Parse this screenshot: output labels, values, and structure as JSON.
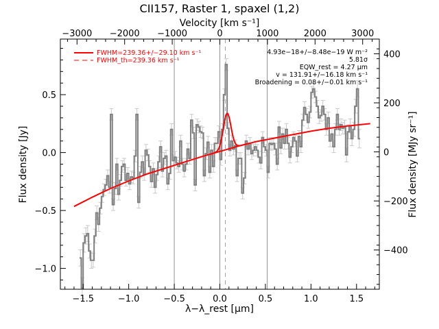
{
  "chart_data": {
    "type": "line",
    "title": "CII157, Raster 1, spaxel (1,2)",
    "xlabel": "λ−λ_rest [μm]",
    "ylabel": "Flux density [Jy]",
    "top_axis_label": "Velocity [km s⁻¹]",
    "right_axis_label": "Flux density [MJy sr⁻¹]",
    "xlim": [
      -1.75,
      1.75
    ],
    "ylim": [
      -1.18,
      0.98
    ],
    "top_xlim": [
      -3350,
      3350
    ],
    "right_ylim": [
      -560,
      460
    ],
    "x_ticks": [
      -1.5,
      -1.0,
      -0.5,
      0.0,
      0.5,
      1.0,
      1.5
    ],
    "x_tick_labels": [
      "−1.5",
      "−1.0",
      "−0.5",
      "0.0",
      "0.5",
      "1.0",
      "1.5"
    ],
    "y_ticks": [
      -1.0,
      -0.5,
      0.0,
      0.5
    ],
    "y_tick_labels": [
      "−1.0",
      "−0.5",
      "0.0",
      "0.5"
    ],
    "top_ticks": [
      -3000,
      -2000,
      -1000,
      0,
      1000,
      2000,
      3000
    ],
    "top_tick_labels": [
      "−3000",
      "−2000",
      "−1000",
      "0",
      "1000",
      "2000",
      "3000"
    ],
    "right_ticks": [
      -400,
      -200,
      0,
      200,
      400
    ],
    "right_tick_labels": [
      "−400",
      "−200",
      "0",
      "200",
      "400"
    ],
    "vertical_lines": [
      -0.5,
      0.0,
      0.52
    ],
    "rest_line": 0.06,
    "legend": [
      {
        "label": "FWHM=239.36+/−29.10 km s⁻¹",
        "style": "solid",
        "color": "#ff0000"
      },
      {
        "label": "FWHM_th=239.36 km s⁻¹",
        "style": "dashed",
        "color": "#ff0000"
      }
    ],
    "annotations": [
      "4.93e−18+/−8.48e−19 W m⁻²",
      "5.81σ",
      "EQW_rest = 4.27 μm",
      "v = 131.91+/−16.18 km s⁻¹",
      "Broadening = 0.08+/−0.01 km s⁻¹"
    ],
    "spectrum": {
      "color": "#808080",
      "points": [
        [
          -1.53,
          -0.91
        ],
        [
          -1.51,
          -1.17
        ],
        [
          -1.49,
          -0.78
        ],
        [
          -1.47,
          -0.72
        ],
        [
          -1.45,
          -0.7
        ],
        [
          -1.43,
          -0.85
        ],
        [
          -1.41,
          -0.93
        ],
        [
          -1.39,
          -0.93
        ],
        [
          -1.37,
          -0.72
        ],
        [
          -1.35,
          -0.52
        ],
        [
          -1.33,
          -0.62
        ],
        [
          -1.31,
          -0.48
        ],
        [
          -1.29,
          -0.38
        ],
        [
          -1.27,
          -0.32
        ],
        [
          -1.25,
          -0.28
        ],
        [
          -1.23,
          -0.2
        ],
        [
          -1.21,
          -0.3
        ],
        [
          -1.19,
          0.33
        ],
        [
          -1.17,
          -0.45
        ],
        [
          -1.15,
          -0.31
        ],
        [
          -1.13,
          -0.1
        ],
        [
          -1.11,
          -0.36
        ],
        [
          -1.09,
          -0.24
        ],
        [
          -1.07,
          -0.12
        ],
        [
          -1.05,
          -0.1
        ],
        [
          -1.03,
          -0.24
        ],
        [
          -1.01,
          -0.18
        ],
        [
          -0.99,
          -0.27
        ],
        [
          -0.97,
          -0.21
        ],
        [
          -0.95,
          -0.22
        ],
        [
          -0.93,
          -0.03
        ],
        [
          -0.91,
          0.33
        ],
        [
          -0.89,
          -0.43
        ],
        [
          -0.87,
          -0.17
        ],
        [
          -0.85,
          -0.08
        ],
        [
          -0.83,
          -0.19
        ],
        [
          -0.81,
          0.02
        ],
        [
          -0.79,
          -0.02
        ],
        [
          -0.77,
          -0.12
        ],
        [
          -0.75,
          -0.25
        ],
        [
          -0.73,
          -0.14
        ],
        [
          -0.71,
          -0.3
        ],
        [
          -0.69,
          -0.19
        ],
        [
          -0.67,
          -0.08
        ],
        [
          -0.65,
          0.05
        ],
        [
          -0.63,
          -0.16
        ],
        [
          -0.61,
          -0.05
        ],
        [
          -0.59,
          -0.03
        ],
        [
          -0.57,
          -0.27
        ],
        [
          -0.55,
          -0.18
        ],
        [
          -0.53,
          0.2
        ],
        [
          -0.51,
          -0.07
        ],
        [
          -0.49,
          -0.04
        ],
        [
          -0.47,
          -0.09
        ],
        [
          -0.45,
          -0.12
        ],
        [
          -0.43,
          0.1
        ],
        [
          -0.41,
          -0.1
        ],
        [
          -0.39,
          -0.16
        ],
        [
          -0.37,
          -0.1
        ],
        [
          -0.35,
          0.03
        ],
        [
          -0.33,
          -0.05
        ],
        [
          -0.31,
          0.28
        ],
        [
          -0.29,
          0.17
        ],
        [
          -0.27,
          -0.28
        ],
        [
          -0.25,
          0.24
        ],
        [
          -0.23,
          0.22
        ],
        [
          -0.21,
          0.18
        ],
        [
          -0.19,
          0.17
        ],
        [
          -0.17,
          -0.2
        ],
        [
          -0.15,
          -0.01
        ],
        [
          -0.13,
          0.09
        ],
        [
          -0.11,
          -0.17
        ],
        [
          -0.09,
          0.02
        ],
        [
          -0.07,
          -0.12
        ],
        [
          -0.05,
          0.08
        ],
        [
          -0.03,
          0.08
        ],
        [
          -0.01,
          0.18
        ],
        [
          0.01,
          -0.06
        ],
        [
          0.03,
          0.2
        ],
        [
          0.05,
          0.5
        ],
        [
          0.07,
          0.76
        ],
        [
          0.09,
          0.21
        ],
        [
          0.11,
          0.02
        ],
        [
          0.13,
          0.1
        ],
        [
          0.15,
          0.03
        ],
        [
          0.17,
          0.06
        ],
        [
          0.19,
          -0.2
        ],
        [
          0.21,
          -0.05
        ],
        [
          0.23,
          -0.05
        ],
        [
          0.25,
          -0.35
        ],
        [
          0.27,
          -0.22
        ],
        [
          0.29,
          0.1
        ],
        [
          0.31,
          0.03
        ],
        [
          0.33,
          0.08
        ],
        [
          0.35,
          -0.01
        ],
        [
          0.37,
          0.02
        ],
        [
          0.39,
          0.05
        ],
        [
          0.41,
          0.02
        ],
        [
          0.43,
          -0.04
        ],
        [
          0.45,
          -0.09
        ],
        [
          0.47,
          0.13
        ],
        [
          0.49,
          0.05
        ],
        [
          0.51,
          0.02
        ],
        [
          0.53,
          -0.17
        ],
        [
          0.55,
          0.08
        ],
        [
          0.57,
          0.07
        ],
        [
          0.59,
          0.08
        ],
        [
          0.61,
          0.03
        ],
        [
          0.63,
          -0.1
        ],
        [
          0.65,
          0.22
        ],
        [
          0.67,
          0.04
        ],
        [
          0.69,
          0.16
        ],
        [
          0.71,
          0.08
        ],
        [
          0.73,
          0.2
        ],
        [
          0.75,
          0.08
        ],
        [
          0.77,
          -0.04
        ],
        [
          0.79,
          0.05
        ],
        [
          0.81,
          0.13
        ],
        [
          0.83,
          0.1
        ],
        [
          0.85,
          -0.03
        ],
        [
          0.87,
          0.14
        ],
        [
          0.89,
          0.05
        ],
        [
          0.91,
          0.28
        ],
        [
          0.93,
          0.39
        ],
        [
          0.95,
          0.33
        ],
        [
          0.97,
          0.26
        ],
        [
          0.99,
          0.35
        ],
        [
          1.01,
          0.52
        ],
        [
          1.03,
          0.55
        ],
        [
          1.05,
          0.48
        ],
        [
          1.07,
          0.4
        ],
        [
          1.09,
          0.3
        ],
        [
          1.11,
          0.32
        ],
        [
          1.13,
          0.4
        ],
        [
          1.15,
          0.33
        ],
        [
          1.17,
          0.2
        ],
        [
          1.19,
          0.3
        ],
        [
          1.21,
          0.1
        ],
        [
          1.23,
          0.16
        ],
        [
          1.25,
          0.05
        ],
        [
          1.27,
          0.2
        ],
        [
          1.29,
          0.33
        ],
        [
          1.31,
          0.2
        ],
        [
          1.33,
          0.24
        ],
        [
          1.35,
          0.21
        ],
        [
          1.37,
          0.22
        ],
        [
          1.39,
          -0.02
        ],
        [
          1.41,
          0.18
        ],
        [
          1.43,
          0.23
        ],
        [
          1.45,
          0.12
        ],
        [
          1.47,
          0.2
        ],
        [
          1.49,
          0.4
        ],
        [
          1.51,
          0.55
        ],
        [
          1.53,
          0.12
        ]
      ],
      "errors": [
        0.07,
        0.09,
        0.08,
        0.07,
        0.07,
        0.06,
        0.07,
        0.06,
        0.06,
        0.06,
        0.06,
        0.05,
        0.05,
        0.05,
        0.05,
        0.05,
        0.05,
        0.05,
        0.05,
        0.05,
        0.05,
        0.05,
        0.05,
        0.05,
        0.05,
        0.05,
        0.05,
        0.05,
        0.05,
        0.05,
        0.05,
        0.05,
        0.05,
        0.05,
        0.05,
        0.05,
        0.05,
        0.05,
        0.05,
        0.05,
        0.05,
        0.05,
        0.05,
        0.05,
        0.05,
        0.05,
        0.05,
        0.05,
        0.05,
        0.05,
        0.05,
        0.05,
        0.05,
        0.05,
        0.05,
        0.05,
        0.05,
        0.05,
        0.05,
        0.05,
        0.05,
        0.05,
        0.05,
        0.05,
        0.05,
        0.05,
        0.05,
        0.05,
        0.05,
        0.05,
        0.05,
        0.05,
        0.05,
        0.05,
        0.05,
        0.05,
        0.05,
        0.05,
        0.05,
        0.05,
        0.05,
        0.05,
        0.05,
        0.05,
        0.05,
        0.05,
        0.05,
        0.05,
        0.05,
        0.05,
        0.05,
        0.05,
        0.05,
        0.05,
        0.05,
        0.05,
        0.05,
        0.05,
        0.05,
        0.05,
        0.05,
        0.05,
        0.05,
        0.05,
        0.05,
        0.05,
        0.05,
        0.05,
        0.05,
        0.05,
        0.05,
        0.05,
        0.05,
        0.05,
        0.05,
        0.05,
        0.05,
        0.05,
        0.05,
        0.05,
        0.05,
        0.05,
        0.05,
        0.05,
        0.05,
        0.05,
        0.05,
        0.05,
        0.05,
        0.05,
        0.05,
        0.05,
        0.05,
        0.05,
        0.05,
        0.05,
        0.05,
        0.05,
        0.05,
        0.05,
        0.05,
        0.05,
        0.05,
        0.05,
        0.05,
        0.06,
        0.06,
        0.06,
        0.06,
        0.06,
        0.06,
        0.06,
        0.07,
        0.08
      ]
    },
    "model": {
      "color": "#ff0000",
      "continuum_points": [
        [
          -1.6,
          -0.465
        ],
        [
          -1.4,
          -0.385
        ],
        [
          -1.2,
          -0.31
        ],
        [
          -1.0,
          -0.245
        ],
        [
          -0.8,
          -0.185
        ],
        [
          -0.6,
          -0.135
        ],
        [
          -0.4,
          -0.085
        ],
        [
          -0.2,
          -0.035
        ],
        [
          0.0,
          0.01
        ],
        [
          0.2,
          0.055
        ],
        [
          0.4,
          0.095
        ],
        [
          0.6,
          0.125
        ],
        [
          0.8,
          0.155
        ],
        [
          1.0,
          0.185
        ],
        [
          1.2,
          0.21
        ],
        [
          1.4,
          0.23
        ],
        [
          1.65,
          0.25
        ]
      ],
      "gaussian": {
        "center": 0.08,
        "amplitude": 0.31,
        "sigma": 0.042,
        "range": [
          -0.1,
          0.3
        ]
      }
    }
  }
}
